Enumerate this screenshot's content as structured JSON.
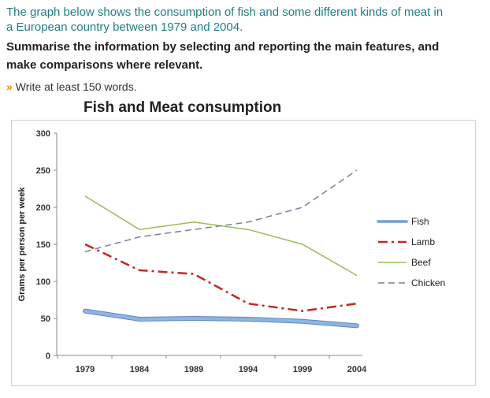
{
  "task": {
    "line1": "The graph below shows the consumption of fish and some different kinds of meat in",
    "line2": "a European country between 1979 and 2004.",
    "line3": "Summarise the information by selecting and reporting the main features, and",
    "line4": "make comparisons where relevant.",
    "bullet": "»",
    "line5": "Write at least 150 words."
  },
  "chart_data": {
    "type": "line",
    "title": "Fish and Meat consumption",
    "xlabel": "",
    "ylabel": "Grams per person per week",
    "x": [
      "1979",
      "1984",
      "1989",
      "1994",
      "1999",
      "2004"
    ],
    "yticks": [
      "0",
      "50",
      "100",
      "150",
      "200",
      "250",
      "300"
    ],
    "ylim": [
      0,
      300
    ],
    "legend_position": "right",
    "series": [
      {
        "name": "Fish",
        "values": [
          60,
          49,
          50,
          49,
          46,
          40
        ],
        "color": "#8fb4e3",
        "style": "thick"
      },
      {
        "name": "Lamb",
        "values": [
          150,
          115,
          110,
          70,
          60,
          70
        ],
        "color": "#c0281e",
        "style": "dashdot"
      },
      {
        "name": "Beef",
        "values": [
          215,
          170,
          180,
          170,
          150,
          108
        ],
        "color": "#9bbb59",
        "style": "solid"
      },
      {
        "name": "Chicken",
        "values": [
          140,
          160,
          170,
          180,
          200,
          250
        ],
        "color": "#7f7f9a",
        "style": "dashed"
      }
    ]
  }
}
